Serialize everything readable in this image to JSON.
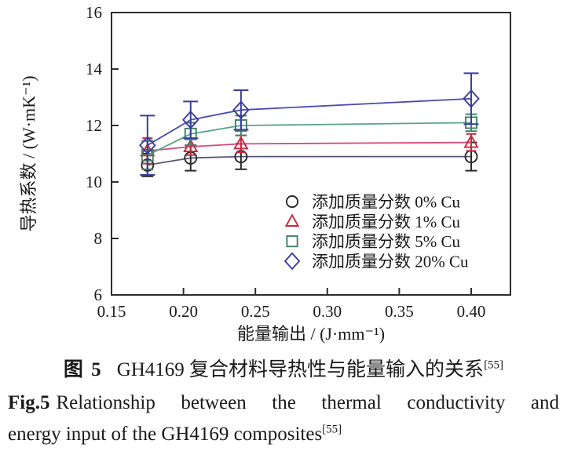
{
  "figure": {
    "caption_cn": {
      "prefix": "图 5",
      "text": "GH4169 复合材料导热性与能量输入的关系",
      "ref": "[55]"
    },
    "caption_en": {
      "prefix": "Fig.5",
      "line1_rest": "Relationship between the thermal conductivity and",
      "line2": "energy input of the GH4169 composites",
      "ref": "[55]"
    }
  },
  "chart_data": {
    "type": "line",
    "title": "",
    "xlabel": "能量输出 / (J·mm⁻¹)",
    "ylabel": "导热系数 / (W·mK⁻¹)",
    "xlim": [
      0.15,
      0.4273
    ],
    "ylim": [
      6,
      16
    ],
    "x_ticks": [
      0.15,
      0.2,
      0.25,
      0.3,
      0.35,
      0.4
    ],
    "x_tick_labels": [
      "0.15",
      "0.20",
      "0.25",
      "0.30",
      "0.35",
      "0.40"
    ],
    "y_ticks": [
      6,
      8,
      10,
      12,
      14,
      16
    ],
    "y_tick_labels": [
      "6",
      "8",
      "10",
      "12",
      "14",
      "16"
    ],
    "grid": false,
    "legend_position": "inside lower right",
    "x": [
      0.175,
      0.205,
      0.24,
      0.4
    ],
    "series": [
      {
        "name": "添加质量分数 0% Cu",
        "marker": "circle",
        "marker_color": "#2a2a2a",
        "line_color": "#5a5578",
        "values": [
          10.6,
          10.85,
          10.9,
          10.9
        ],
        "errors": [
          0.4,
          0.45,
          0.45,
          0.5
        ]
      },
      {
        "name": "添加质量分数 1% Cu",
        "marker": "triangle",
        "marker_color": "#c8273e",
        "line_color": "#d9487c",
        "values": [
          11.1,
          11.25,
          11.35,
          11.4
        ],
        "errors": [
          0.45,
          0.3,
          0.3,
          0.3
        ]
      },
      {
        "name": "添加质量分数 5% Cu",
        "marker": "square",
        "marker_color": "#3f8169",
        "line_color": "#58a28c",
        "values": [
          10.95,
          11.7,
          12.0,
          12.1
        ],
        "errors": [
          0.5,
          0.4,
          0.35,
          0.3
        ]
      },
      {
        "name": "添加质量分数 20% Cu",
        "marker": "diamond",
        "marker_color": "#393d9f",
        "line_color": "#4a4cb4",
        "values": [
          11.3,
          12.2,
          12.55,
          12.95
        ],
        "errors": [
          1.05,
          0.65,
          0.7,
          0.9
        ]
      }
    ]
  },
  "colors": {
    "axis": "#2e2e2e",
    "text": "#1a1a1a",
    "background": "#ffffff"
  }
}
